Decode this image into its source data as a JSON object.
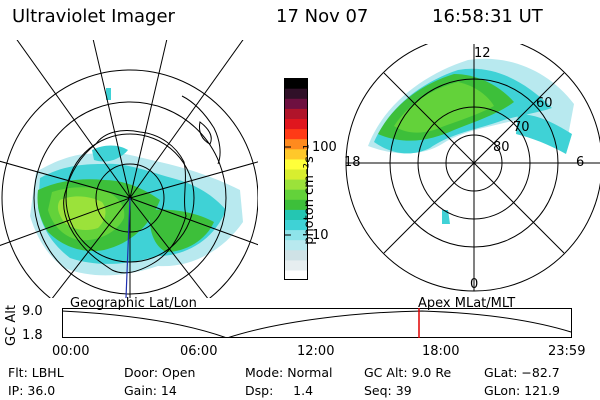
{
  "header": {
    "title": "Ultraviolet Imager",
    "date": "17 Nov 07",
    "time": "16:58:31 UT"
  },
  "colorbar": {
    "unit_label": "photon cm⁻²s⁻¹",
    "tick_labels": [
      "100",
      "10"
    ],
    "colors": [
      "#ffffff",
      "#e6eef0",
      "#cfe2e6",
      "#b8e9ef",
      "#8ee4ea",
      "#3fd2d6",
      "#24c6b2",
      "#3dbf3a",
      "#63d23a",
      "#9be23a",
      "#d8ee2f",
      "#ffff3a",
      "#ffc82a",
      "#ff8a1e",
      "#ff3a16",
      "#e0161e",
      "#b0142a",
      "#6e1040",
      "#301028",
      "#000000"
    ]
  },
  "left_panel": {
    "label": "Geographic Lat/Lon"
  },
  "right_panel": {
    "label": "Apex MLat/MLT",
    "mlat_labels": [
      "60",
      "70",
      "80"
    ],
    "mlt_labels": [
      "12",
      "18",
      "6",
      "0"
    ]
  },
  "altitude_plot": {
    "axis_label": "GC Alt",
    "y_ticks": [
      "9.0",
      "1.8"
    ],
    "x_ticks": [
      "00:00",
      "06:00",
      "12:00",
      "18:00",
      "23:59"
    ],
    "current_time_marker_color": "#e00000"
  },
  "footer": {
    "row1": {
      "filter": "Flt: LBHL",
      "door": "Door: Open",
      "mode": "Mode: Normal",
      "gc_alt": "GC Alt: 9.0 Re",
      "glat": "GLat: −82.7"
    },
    "row2": {
      "ip": "IP: 36.0",
      "gain": "Gain: 14",
      "dsp": "Dsp:     1.4",
      "seq": "Seq: 39",
      "glon": "GLon: 121.9"
    }
  }
}
